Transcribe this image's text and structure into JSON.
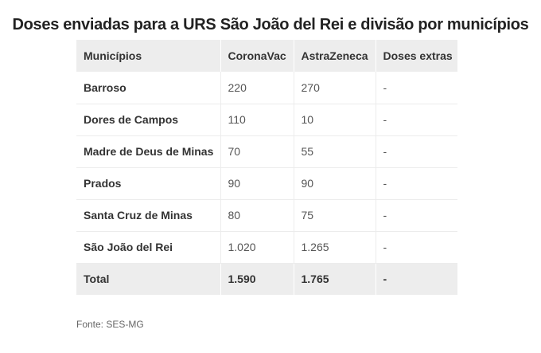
{
  "title": "Doses enviadas para a URS São João del Rei e divisão por municípios",
  "table": {
    "headers": [
      "Municípios",
      "CoronaVac",
      "AstraZeneca",
      "Doses extras"
    ],
    "rows": [
      {
        "municipio": "Barroso",
        "coronavac": "220",
        "astrazeneca": "270",
        "extras": "-"
      },
      {
        "municipio": "Dores de Campos",
        "coronavac": "110",
        "astrazeneca": "10",
        "extras": "-"
      },
      {
        "municipio": "Madre de Deus de Minas",
        "coronavac": "70",
        "astrazeneca": "55",
        "extras": "-"
      },
      {
        "municipio": "Prados",
        "coronavac": "90",
        "astrazeneca": "90",
        "extras": "-"
      },
      {
        "municipio": "Santa Cruz de Minas",
        "coronavac": "80",
        "astrazeneca": "75",
        "extras": "-"
      },
      {
        "municipio": "São João del Rei",
        "coronavac": "1.020",
        "astrazeneca": "1.265",
        "extras": "-"
      }
    ],
    "total": {
      "label": "Total",
      "coronavac": "1.590",
      "astrazeneca": "1.765",
      "extras": "-"
    }
  },
  "source": "Fonte: SES-MG"
}
